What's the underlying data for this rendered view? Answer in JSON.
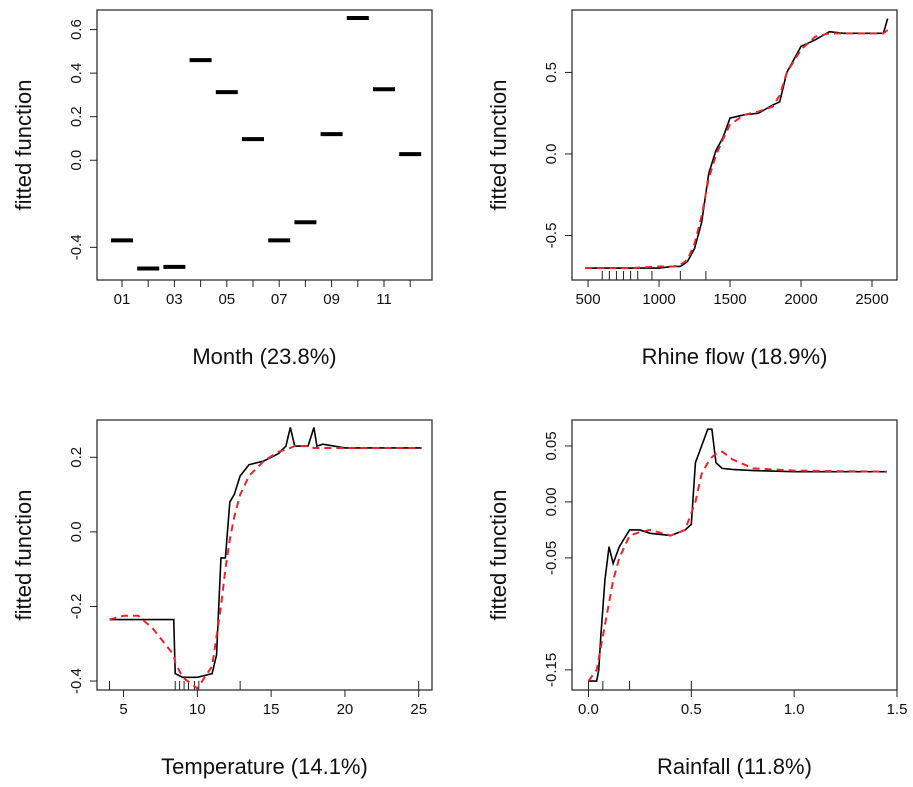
{
  "chart_data": [
    {
      "type": "segment",
      "xlabel": "Month  (23.8%)",
      "ylabel": "fitted function",
      "categories": [
        "01",
        null,
        "03",
        null,
        "05",
        null,
        "07",
        null,
        "09",
        null,
        "11",
        null
      ],
      "values": [
        -0.368,
        -0.497,
        -0.49,
        0.46,
        0.313,
        0.097,
        -0.368,
        -0.285,
        0.12,
        0.653,
        0.326,
        0.028
      ],
      "color": "#000000",
      "ylim": [
        -0.55,
        0.69
      ],
      "yticks": [
        -0.4,
        {
          "value": 0,
          "label": "0.0"
        },
        0.2,
        0.4,
        0.6
      ]
    },
    {
      "type": "line",
      "xlabel": "Rhine flow  (18.9%)",
      "ylabel": "fitted function",
      "x": [
        480,
        600,
        800,
        1000,
        1100,
        1150,
        1200,
        1250,
        1300,
        1350,
        1400,
        1450,
        1500,
        1600,
        1700,
        1800,
        1850,
        1900,
        2000,
        2100,
        2200,
        2300,
        2400,
        2500,
        2580,
        2610
      ],
      "series": [
        {
          "color": "#000000",
          "dashed": false,
          "values": [
            -0.7,
            -0.7,
            -0.7,
            -0.7,
            -0.69,
            -0.69,
            -0.66,
            -0.58,
            -0.42,
            -0.12,
            0.02,
            0.1,
            0.22,
            0.24,
            0.25,
            0.3,
            0.32,
            0.5,
            0.66,
            0.7,
            0.75,
            0.74,
            0.74,
            0.74,
            0.74,
            0.83
          ]
        },
        {
          "color": "#e8262a",
          "dashed": true,
          "values": [
            -0.7,
            -0.7,
            -0.7,
            -0.69,
            -0.69,
            -0.68,
            -0.65,
            -0.55,
            -0.38,
            -0.15,
            -0.01,
            0.09,
            0.18,
            0.24,
            0.26,
            0.29,
            0.36,
            0.5,
            0.64,
            0.72,
            0.74,
            0.74,
            0.74,
            0.74,
            0.74,
            0.76
          ]
        }
      ],
      "rug": [
        600,
        650,
        700,
        750,
        800,
        850,
        950,
        1150,
        1330
      ],
      "xlim": [
        387,
        2676
      ],
      "xticks": [
        500,
        1000,
        1500,
        2000,
        2500
      ],
      "ylim": [
        -0.773,
        0.883
      ],
      "yticks": [
        -0.5,
        {
          "value": 0,
          "label": "0.0"
        },
        0.5
      ]
    },
    {
      "type": "line",
      "xlabel": "Temperature  (14.1%)",
      "ylabel": "fitted function",
      "x": [
        4.05,
        5,
        6,
        7,
        8.4,
        8.5,
        9,
        10,
        11,
        11.3,
        11.6,
        11.9,
        12.2,
        12.5,
        12.9,
        13.5,
        14.5,
        15.5,
        16,
        16.3,
        16.6,
        17.5,
        17.9,
        18.1,
        18.5,
        20,
        25.2
      ],
      "series": [
        {
          "color": "#000000",
          "dashed": false,
          "values": [
            -0.235,
            -0.235,
            -0.235,
            -0.235,
            -0.235,
            -0.38,
            -0.39,
            -0.39,
            -0.38,
            -0.33,
            -0.07,
            -0.07,
            0.08,
            0.1,
            0.15,
            0.18,
            0.19,
            0.21,
            0.23,
            0.28,
            0.23,
            0.23,
            0.28,
            0.23,
            0.235,
            0.225,
            0.225
          ]
        },
        {
          "color": "#e8262a",
          "dashed": true,
          "values": [
            -0.235,
            -0.225,
            -0.225,
            -0.26,
            -0.33,
            -0.35,
            -0.39,
            -0.42,
            -0.36,
            -0.28,
            -0.2,
            -0.1,
            -0.02,
            0.04,
            0.1,
            0.15,
            0.19,
            0.215,
            0.22,
            0.225,
            0.23,
            0.23,
            0.225,
            0.225,
            0.225,
            0.225,
            0.225
          ]
        }
      ],
      "rug": [
        4.05,
        8.5,
        8.8,
        9.1,
        9.4,
        9.8,
        10.1,
        12.9,
        25
      ],
      "xlim": [
        3.2,
        25.9
      ],
      "xticks": [
        5,
        10,
        15,
        20,
        25
      ],
      "ylim": [
        -0.424,
        0.3
      ],
      "yticks": [
        -0.4,
        -0.2,
        {
          "value": 0,
          "label": "0.0"
        },
        0.2
      ]
    },
    {
      "type": "line",
      "xlabel": "Rainfall  (11.8%)",
      "ylabel": "fitted function",
      "x": [
        0,
        0.04,
        0.05,
        0.06,
        0.08,
        0.1,
        0.12,
        0.15,
        0.2,
        0.25,
        0.3,
        0.4,
        0.47,
        0.5,
        0.52,
        0.55,
        0.58,
        0.6,
        0.62,
        0.65,
        0.7,
        0.8,
        1.0,
        1.45
      ],
      "series": [
        {
          "color": "#000000",
          "dashed": false,
          "values": [
            -0.16,
            -0.16,
            -0.15,
            -0.12,
            -0.07,
            -0.04,
            -0.055,
            -0.04,
            -0.025,
            -0.025,
            -0.028,
            -0.03,
            -0.025,
            -0.02,
            0.035,
            0.05,
            0.065,
            0.065,
            0.035,
            0.03,
            0.029,
            0.028,
            0.027,
            0.027
          ]
        },
        {
          "color": "#e8262a",
          "dashed": true,
          "values": [
            -0.16,
            -0.15,
            -0.14,
            -0.13,
            -0.11,
            -0.09,
            -0.07,
            -0.05,
            -0.03,
            -0.027,
            -0.025,
            -0.03,
            -0.025,
            -0.01,
            0.0,
            0.025,
            0.035,
            0.04,
            0.043,
            0.045,
            0.038,
            0.03,
            0.028,
            0.027
          ]
        }
      ],
      "rug": [
        0,
        0.07,
        0.2,
        0.5
      ],
      "xlim": [
        -0.08,
        1.5
      ],
      "xticks": [
        {
          "value": 0,
          "label": "0.0"
        },
        0.5,
        {
          "value": 1,
          "label": "1.0"
        },
        1.5
      ],
      "ylim": [
        -0.168,
        0.0732
      ],
      "yticks": [
        -0.15,
        -0.05,
        {
          "value": 0,
          "label": "0.00"
        },
        0.05
      ]
    }
  ]
}
